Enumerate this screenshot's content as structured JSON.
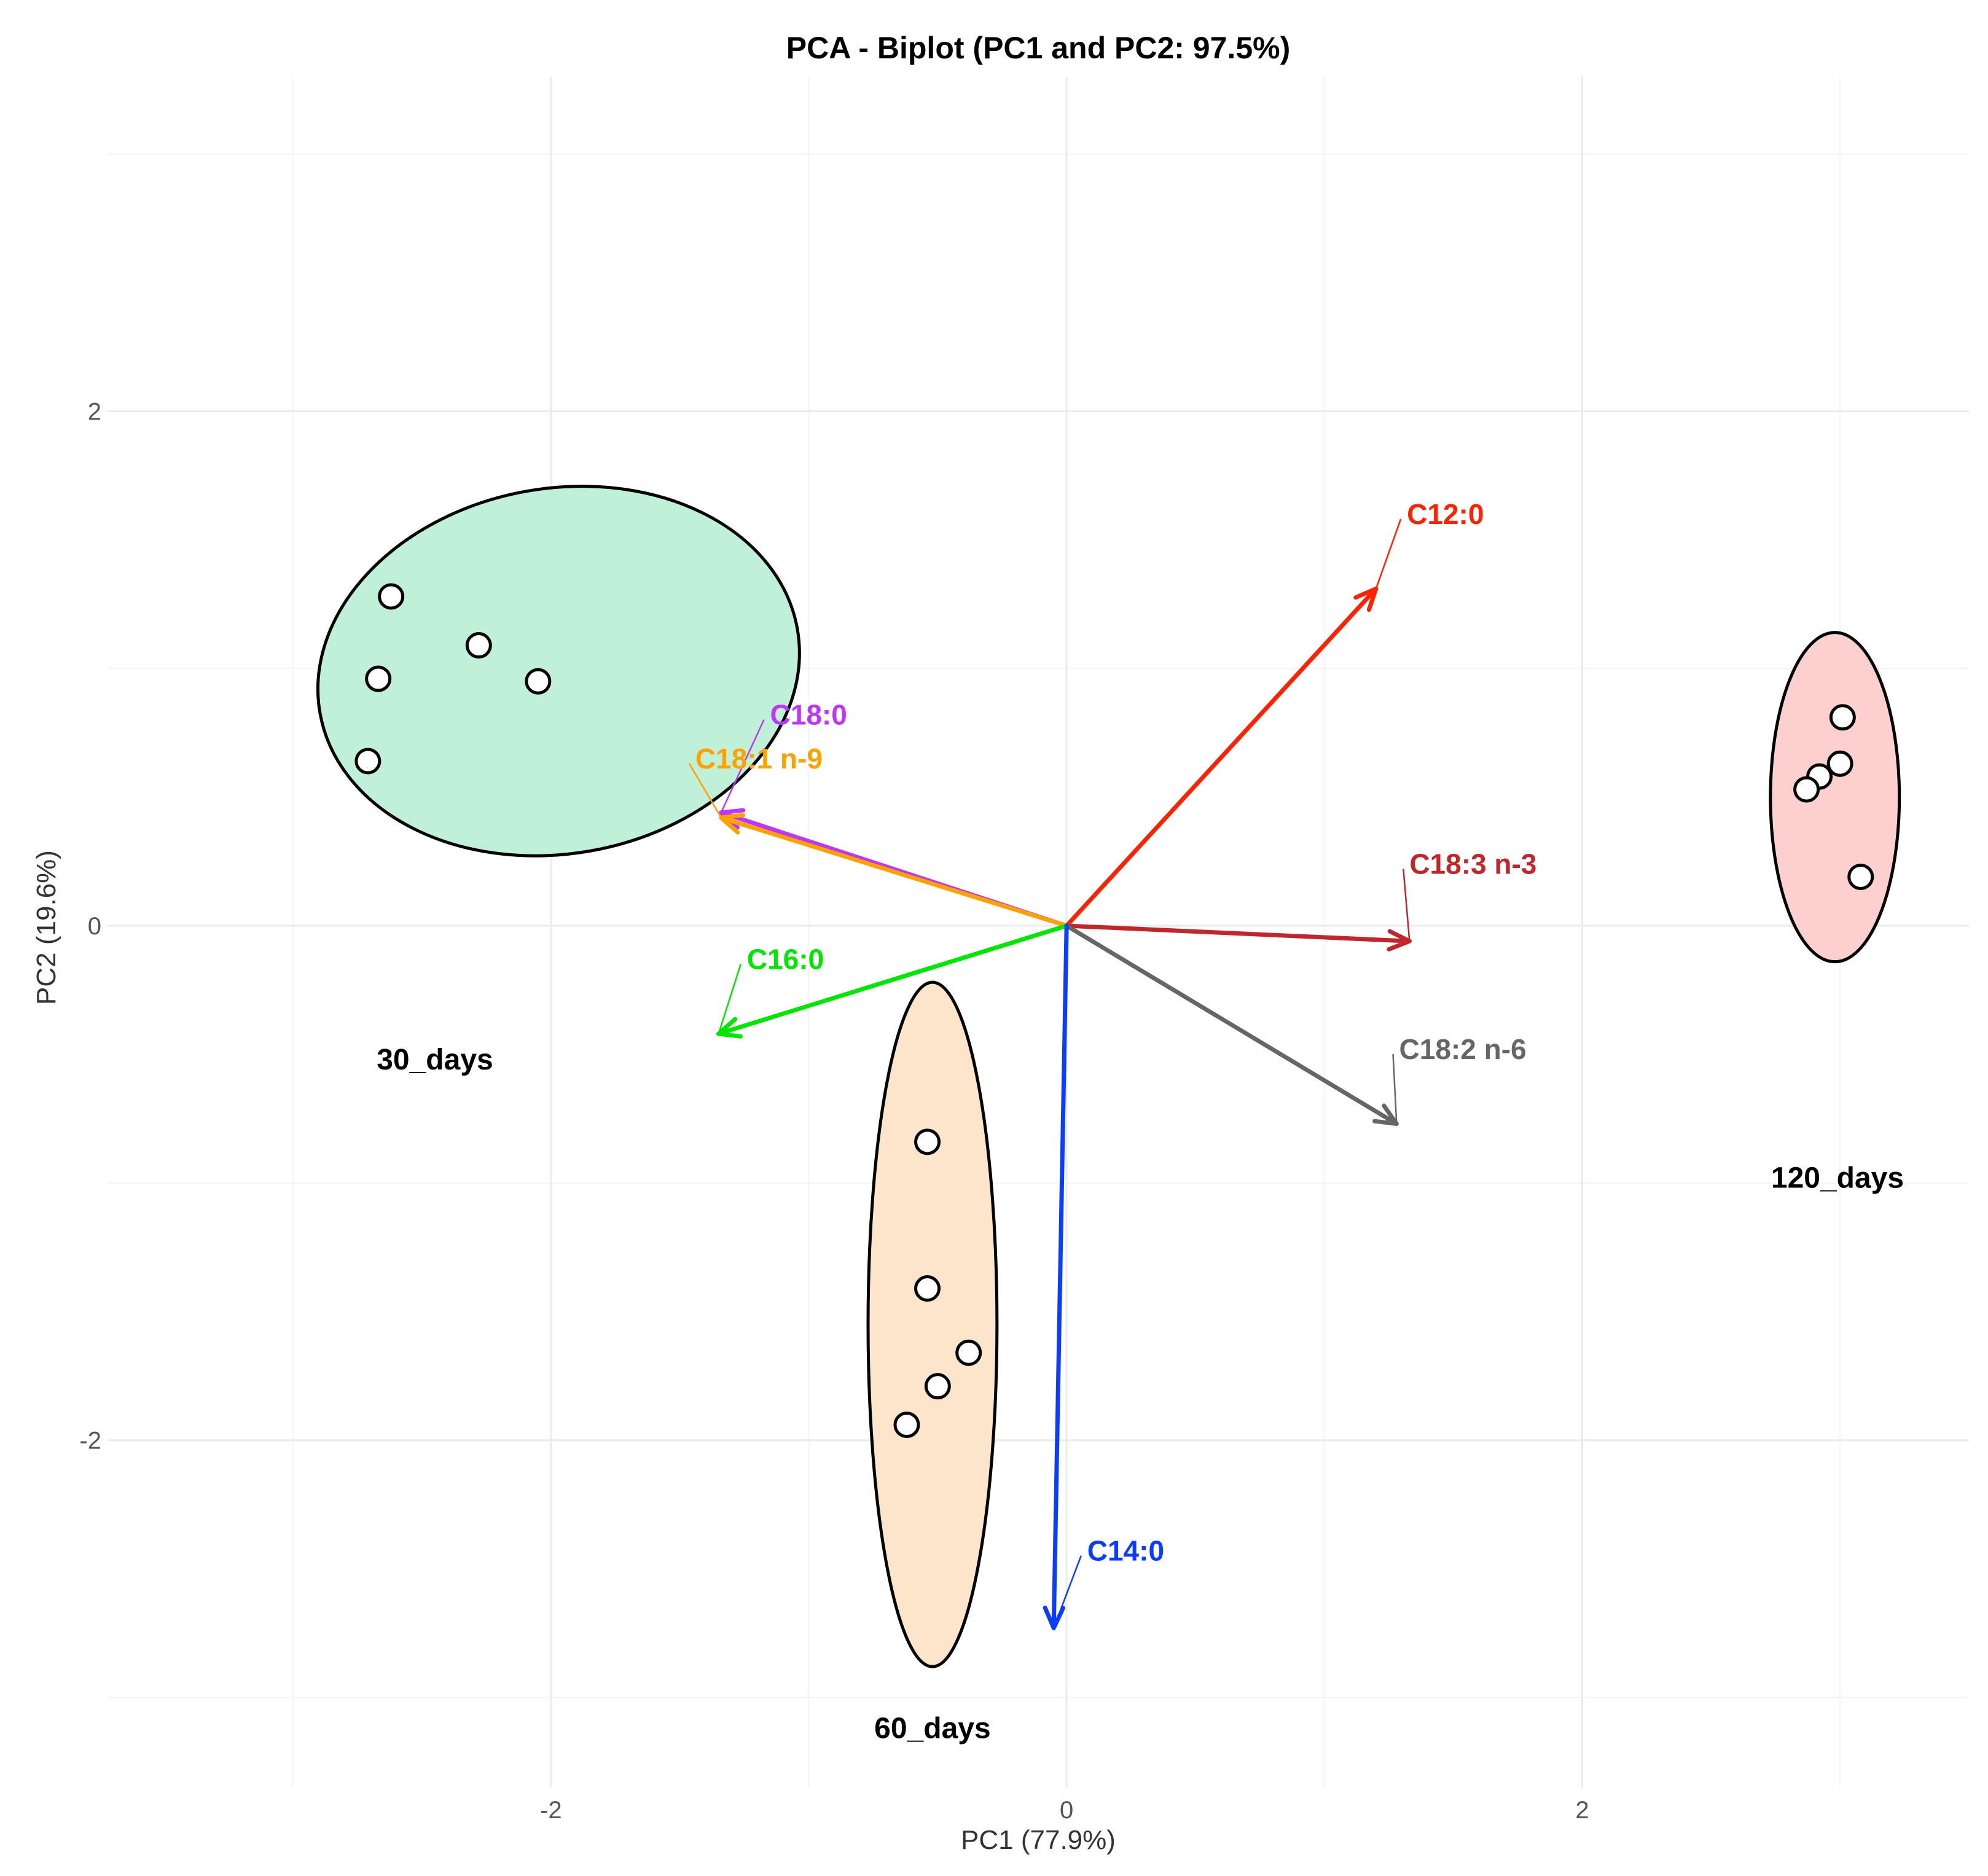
{
  "chart_data": {
    "type": "scatter",
    "title": "PCA - Biplot (PC1 and PC2: 97.5%)",
    "xlabel": "PC1 (77.9%)",
    "ylabel": "PC2 (19.6%)",
    "xlim": [
      -3.72,
      3.5
    ],
    "ylim": [
      -3.35,
      3.3
    ],
    "xticks": [
      -2,
      0,
      2
    ],
    "yticks": [
      -2,
      0,
      2
    ],
    "xtick_labels": [
      "-2",
      "0",
      "2"
    ],
    "ytick_labels": [
      "-2",
      "0",
      "2"
    ],
    "grid": true,
    "groups": [
      {
        "name": "30_days",
        "fill": "#c1f0d8",
        "label_at": [
          -2.45,
          -0.52
        ],
        "ellipse": {
          "cx": -1.97,
          "cy": 0.99,
          "rx": 0.94,
          "ry": 0.71,
          "rotation_deg": -10
        },
        "points": [
          [
            -2.62,
            1.28
          ],
          [
            -2.28,
            1.09
          ],
          [
            -2.05,
            0.95
          ],
          [
            -2.67,
            0.96
          ],
          [
            -2.71,
            0.64
          ]
        ]
      },
      {
        "name": "60_days",
        "fill": "#fde5cc",
        "label_at": [
          -0.52,
          -3.12
        ],
        "ellipse": {
          "cx": -0.52,
          "cy": -1.55,
          "rx": 0.25,
          "ry": 1.33,
          "rotation_deg": 0
        },
        "points": [
          [
            -0.54,
            -0.84
          ],
          [
            -0.54,
            -1.41
          ],
          [
            -0.38,
            -1.66
          ],
          [
            -0.5,
            -1.79
          ],
          [
            -0.62,
            -1.94
          ]
        ]
      },
      {
        "name": "120_days",
        "fill": "#fdd0d0",
        "label_at": [
          2.99,
          -0.98
        ],
        "ellipse": {
          "cx": 2.98,
          "cy": 0.5,
          "rx": 0.25,
          "ry": 0.64,
          "rotation_deg": 0
        },
        "points": [
          [
            3.01,
            0.81
          ],
          [
            3.0,
            0.63
          ],
          [
            2.92,
            0.58
          ],
          [
            2.87,
            0.53
          ],
          [
            3.08,
            0.19
          ]
        ]
      }
    ],
    "loadings": [
      {
        "name": "C12:0",
        "x": 1.2,
        "y": 1.31,
        "color": "#ff2200",
        "label_at": [
          1.32,
          1.6
        ]
      },
      {
        "name": "C18:0",
        "x": -1.34,
        "y": 0.44,
        "color": "#bd36ff",
        "label_at": [
          -1.15,
          0.82
        ]
      },
      {
        "name": "C18:1 n-9",
        "x": -1.34,
        "y": 0.42,
        "color": "#ffa200",
        "label_at": [
          -1.44,
          0.65
        ]
      },
      {
        "name": "C18:3 n-3",
        "x": 1.33,
        "y": -0.06,
        "color": "#c0272d",
        "label_at": [
          1.33,
          0.24
        ]
      },
      {
        "name": "C16:0",
        "x": -1.35,
        "y": -0.42,
        "color": "#00e600",
        "label_at": [
          -1.24,
          -0.13
        ]
      },
      {
        "name": "C18:2 n-6",
        "x": 1.28,
        "y": -0.77,
        "color": "#666666",
        "label_at": [
          1.29,
          -0.48
        ]
      },
      {
        "name": "C14:0",
        "x": -0.05,
        "y": -2.73,
        "color": "#0a3dff",
        "label_at": [
          0.08,
          -2.43
        ]
      }
    ]
  }
}
